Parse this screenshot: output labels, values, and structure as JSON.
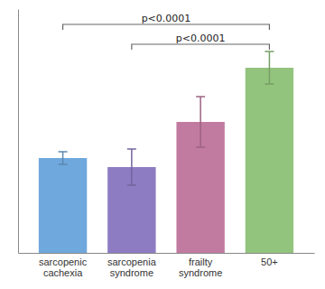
{
  "chart_data": {
    "type": "bar",
    "categories": [
      "sarcopenic\ncachexia",
      "sarcopenia\nsyndrome",
      "frailty\nsyndrome",
      "50+"
    ],
    "values": [
      1.05,
      0.95,
      1.45,
      2.05
    ],
    "errors": [
      0.07,
      0.2,
      0.28,
      0.18
    ],
    "colors": [
      "#6fa8dc",
      "#8e7cc3",
      "#c27ba0",
      "#93c47d"
    ],
    "ylim": [
      0,
      2.7
    ],
    "tick_labels": "x",
    "annotations": [
      {
        "text": "p<0.0001",
        "from": "sarcopenic\ncachexia",
        "to": "50+",
        "color": "#666666"
      },
      {
        "text": "p<0.0001",
        "from": "sarcopenia\nsyndrome",
        "to": "50+",
        "color": "#666666"
      }
    ]
  }
}
